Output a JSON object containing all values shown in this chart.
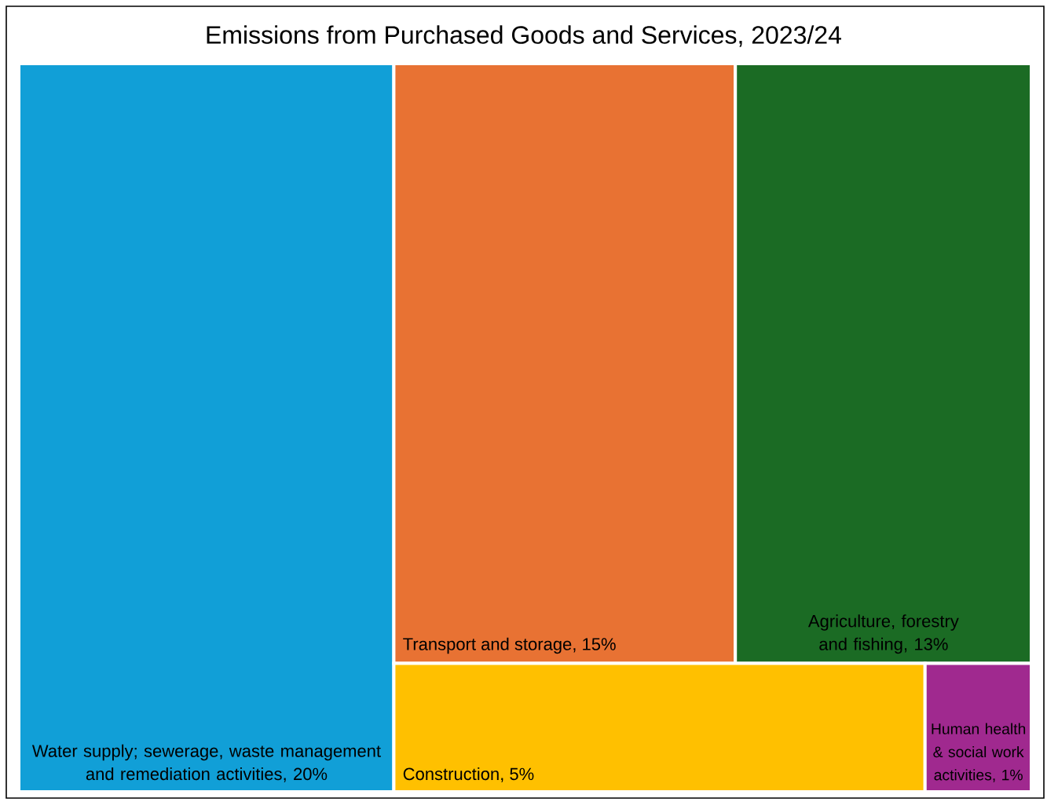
{
  "chart_data": {
    "type": "other",
    "title": "Emissions from Purchased Goods and Services, 2023/24",
    "categories": [
      "Water supply; sewerage, waste management and remediation activities",
      "Transport and storage",
      "Agriculture, forestry and fishing",
      "Construction",
      "Human health & social work activities"
    ],
    "values": [
      20,
      15,
      13,
      5,
      1
    ],
    "value_labels": [
      ", 20%",
      ", 15%",
      ", 13%",
      ", 5%",
      ", 1%"
    ],
    "colors": [
      "#119fd7",
      "#e87233",
      "#1b6b24",
      "#ffc000",
      "#a0298f"
    ]
  }
}
